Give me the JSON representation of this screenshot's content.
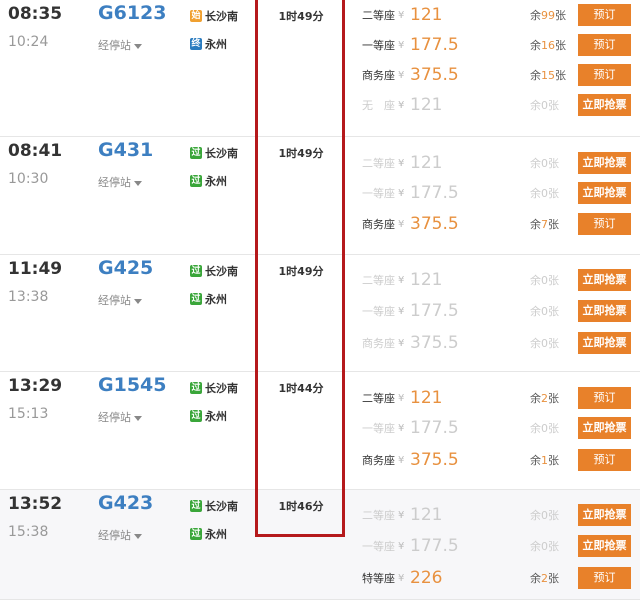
{
  "stops_label": "经停站",
  "colors": {
    "accent": "#e8812a",
    "train": "#3d7fc1",
    "highlight_box": "#b5191c",
    "start_badge": "#f0a030",
    "end_badge": "#2a7bbf",
    "pass_badge": "#3aa63a"
  },
  "trains": [
    {
      "dep": "08:35",
      "arr": "10:24",
      "no": "G6123",
      "from": "长沙南",
      "from_badge": "始",
      "to": "永州",
      "to_badge": "终",
      "duration": "1时49分",
      "seats": [
        {
          "name": "二等座",
          "yen": "¥",
          "price": "121",
          "pre": "余",
          "count": "99",
          "post": "张",
          "btn": "预订",
          "avail": true
        },
        {
          "name": "一等座",
          "yen": "¥",
          "price": "177.5",
          "pre": "余",
          "count": "16",
          "post": "张",
          "btn": "预订",
          "avail": true
        },
        {
          "name": "商务座",
          "yen": "¥",
          "price": "375.5",
          "pre": "余",
          "count": "15",
          "post": "张",
          "btn": "预订",
          "avail": true
        },
        {
          "name": "无　座",
          "yen": "¥",
          "price": "121",
          "pre": "余",
          "count": "0",
          "post": "张",
          "btn": "立即抢票",
          "avail": false
        }
      ]
    },
    {
      "dep": "08:41",
      "arr": "10:30",
      "no": "G431",
      "from": "长沙南",
      "from_badge": "过",
      "to": "永州",
      "to_badge": "过",
      "duration": "1时49分",
      "seats": [
        {
          "name": "二等座",
          "yen": "¥",
          "price": "121",
          "pre": "余",
          "count": "0",
          "post": "张",
          "btn": "立即抢票",
          "avail": false
        },
        {
          "name": "一等座",
          "yen": "¥",
          "price": "177.5",
          "pre": "余",
          "count": "0",
          "post": "张",
          "btn": "立即抢票",
          "avail": false
        },
        {
          "name": "商务座",
          "yen": "¥",
          "price": "375.5",
          "pre": "余",
          "count": "7",
          "post": "张",
          "btn": "预订",
          "avail": true
        }
      ]
    },
    {
      "dep": "11:49",
      "arr": "13:38",
      "no": "G425",
      "from": "长沙南",
      "from_badge": "过",
      "to": "永州",
      "to_badge": "过",
      "duration": "1时49分",
      "seats": [
        {
          "name": "二等座",
          "yen": "¥",
          "price": "121",
          "pre": "余",
          "count": "0",
          "post": "张",
          "btn": "立即抢票",
          "avail": false
        },
        {
          "name": "一等座",
          "yen": "¥",
          "price": "177.5",
          "pre": "余",
          "count": "0",
          "post": "张",
          "btn": "立即抢票",
          "avail": false
        },
        {
          "name": "商务座",
          "yen": "¥",
          "price": "375.5",
          "pre": "余",
          "count": "0",
          "post": "张",
          "btn": "立即抢票",
          "avail": false
        }
      ]
    },
    {
      "dep": "13:29",
      "arr": "15:13",
      "no": "G1545",
      "from": "长沙南",
      "from_badge": "过",
      "to": "永州",
      "to_badge": "过",
      "duration": "1时44分",
      "seats": [
        {
          "name": "二等座",
          "yen": "¥",
          "price": "121",
          "pre": "余",
          "count": "2",
          "post": "张",
          "btn": "预订",
          "avail": true
        },
        {
          "name": "一等座",
          "yen": "¥",
          "price": "177.5",
          "pre": "余",
          "count": "0",
          "post": "张",
          "btn": "立即抢票",
          "avail": false
        },
        {
          "name": "商务座",
          "yen": "¥",
          "price": "375.5",
          "pre": "余",
          "count": "1",
          "post": "张",
          "btn": "预订",
          "avail": true
        }
      ]
    },
    {
      "dep": "13:52",
      "arr": "15:38",
      "no": "G423",
      "from": "长沙南",
      "from_badge": "过",
      "to": "永州",
      "to_badge": "过",
      "duration": "1时46分",
      "seats": [
        {
          "name": "二等座",
          "yen": "¥",
          "price": "121",
          "pre": "余",
          "count": "0",
          "post": "张",
          "btn": "立即抢票",
          "avail": false
        },
        {
          "name": "一等座",
          "yen": "¥",
          "price": "177.5",
          "pre": "余",
          "count": "0",
          "post": "张",
          "btn": "立即抢票",
          "avail": false
        },
        {
          "name": "特等座",
          "yen": "¥",
          "price": "226",
          "pre": "余",
          "count": "2",
          "post": "张",
          "btn": "预订",
          "avail": true
        }
      ]
    }
  ]
}
